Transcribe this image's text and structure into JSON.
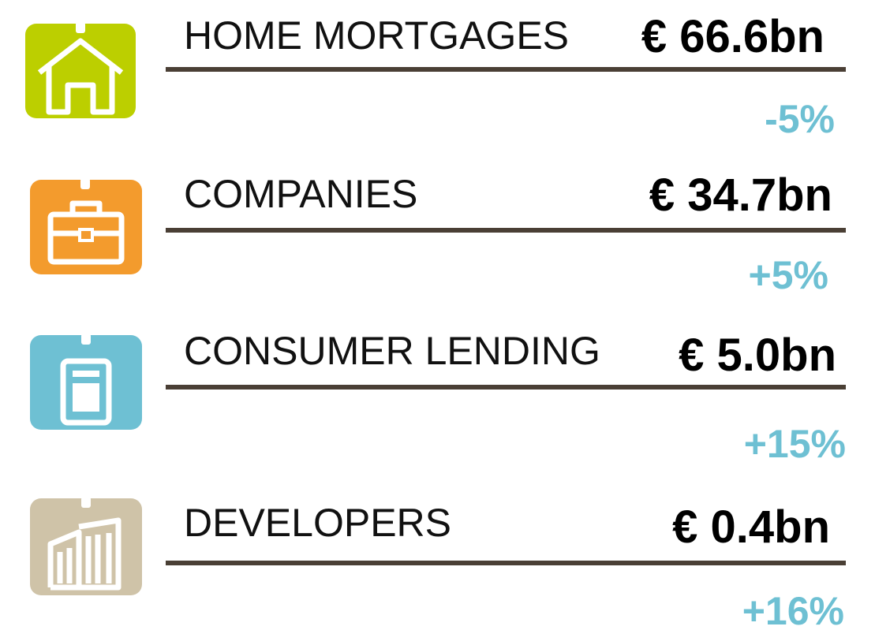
{
  "items": [
    {
      "label": "HOME MORTGAGES",
      "amount": "€ 66.6bn",
      "change": "-5%"
    },
    {
      "label": "COMPANIES",
      "amount": "€ 34.7bn",
      "change": "+5%"
    },
    {
      "label": "CONSUMER LENDING",
      "amount": "€ 5.0bn",
      "change": "+15%"
    },
    {
      "label": "DEVELOPERS",
      "amount": "€ 0.4bn",
      "change": "+16%"
    }
  ]
}
